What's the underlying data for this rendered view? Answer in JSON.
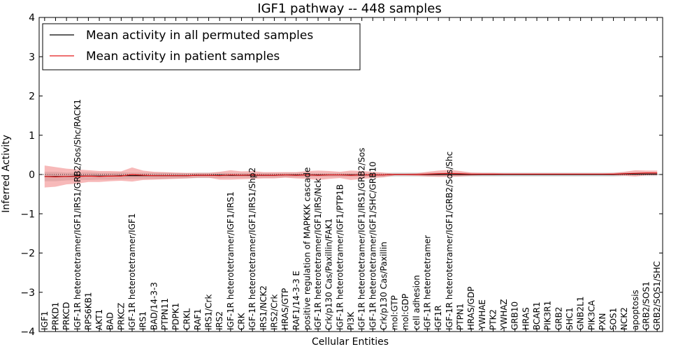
{
  "chart_data": {
    "type": "line",
    "title": "IGF1 pathway -- 448 samples",
    "xlabel": "Cellular Entities",
    "ylabel": "Inferred Activity",
    "ylim": [
      -4,
      4
    ],
    "yticks": [
      -4,
      -3,
      -2,
      -1,
      0,
      1,
      2,
      3,
      4
    ],
    "ytick_labels": [
      "−4",
      "−3",
      "−2",
      "−1",
      "0",
      "1",
      "2",
      "3",
      "4"
    ],
    "legend": {
      "placement": "top-left",
      "entries": [
        "Mean activity in all permuted samples",
        "Mean activity in patient samples"
      ]
    },
    "colors": {
      "permuted_line": "#000000",
      "patient_line": "#e41a1c",
      "permuted_band": "#c8c8c8",
      "patient_band": "#f08080"
    },
    "categories": [
      "IGF1",
      "PRKD1",
      "PRKCD",
      "IGF-1R heterotetramer/IGF1/IRS1/GRB2/Sos/Shc/RACK1",
      "RPS6KB1",
      "AKT1",
      "BAD",
      "PRKCZ",
      "IGF-1R heterotetramer/IGF1",
      "IRS1",
      "BAD/14-3-3",
      "PTPN11",
      "PDPK1",
      "CRKL",
      "RAF1",
      "IRS1/Crk",
      "IRS2",
      "IGF-1R heterotetramer/IGF1/IRS1",
      "CRK",
      "IGF-1R heterotetramer/IGF1/IRS1/Shp2",
      "IRS1/NCK2",
      "IRS2/Crk",
      "HRAS/GTP",
      "RAF1/14-3-3 E",
      "positive regulation of MAPKKK cascade",
      "IGF-1R heterotetramer/IGF1/IRS/Nck",
      "Crk/p130 Cas/Paxillin/FAK1",
      "IGF-1R heterotetramer/IGF1/PTP1B",
      "PI3K",
      "IGF-1R heterotetramer/IGF1/IRS1/GRB2/Sos",
      "IGF-1R heterotetramer/IGF1/SHC/GRB10",
      "Crk/p130 Cas/Paxillin",
      "mol:GTP",
      "mol:GDP",
      "cell adhesion",
      "IGF-1R heterotetramer",
      "IGF1R",
      "IGF-1R heterotetramer/IGF1/GRB2/Sos/Shc",
      "PTPN1",
      "HRAS/GDP",
      "YWHAE",
      "PTK2",
      "YWHAZ",
      "GRB10",
      "HRAS",
      "BCAR1",
      "PIK3R1",
      "GRB2",
      "SHC1",
      "GNB2L1",
      "PIK3CA",
      "PXN",
      "SOS1",
      "NCK2",
      "apoptosis",
      "GRB2/SOS1",
      "GRB2/SOS1/SHC"
    ],
    "series": [
      {
        "name": "Mean activity in all permuted samples",
        "values": [
          -0.05,
          -0.05,
          -0.05,
          -0.04,
          -0.04,
          -0.04,
          -0.04,
          -0.03,
          -0.03,
          -0.03,
          -0.03,
          -0.03,
          -0.03,
          -0.03,
          -0.02,
          -0.02,
          -0.02,
          -0.02,
          -0.02,
          -0.02,
          -0.02,
          -0.02,
          -0.01,
          -0.01,
          -0.01,
          -0.01,
          -0.01,
          -0.01,
          -0.01,
          -0.01,
          -0.01,
          -0.01,
          0.0,
          0.0,
          0.0,
          0.0,
          0.0,
          0.0,
          0.0,
          0.0,
          0.0,
          0.0,
          0.0,
          0.0,
          0.0,
          0.0,
          0.0,
          0.0,
          0.0,
          0.0,
          0.0,
          0.0,
          0.0,
          0.01,
          0.01,
          0.01,
          0.01
        ],
        "band": [
          0.12,
          0.12,
          0.1,
          0.1,
          0.1,
          0.09,
          0.09,
          0.09,
          0.08,
          0.08,
          0.08,
          0.08,
          0.07,
          0.07,
          0.07,
          0.07,
          0.07,
          0.06,
          0.06,
          0.06,
          0.06,
          0.06,
          0.06,
          0.06,
          0.06,
          0.05,
          0.05,
          0.05,
          0.05,
          0.05,
          0.05,
          0.05,
          0.05,
          0.05,
          0.05,
          0.05,
          0.05,
          0.05,
          0.05,
          0.05,
          0.05,
          0.05,
          0.05,
          0.05,
          0.05,
          0.05,
          0.05,
          0.05,
          0.05,
          0.05,
          0.05,
          0.05,
          0.05,
          0.05,
          0.05,
          0.05,
          0.05
        ]
      },
      {
        "name": "Mean activity in patient samples",
        "values": [
          -0.05,
          -0.06,
          -0.05,
          -0.05,
          -0.04,
          -0.05,
          -0.04,
          -0.04,
          0.0,
          -0.02,
          -0.03,
          -0.03,
          -0.03,
          -0.03,
          -0.02,
          -0.02,
          -0.03,
          -0.01,
          -0.02,
          -0.01,
          -0.02,
          -0.02,
          -0.01,
          -0.02,
          -0.01,
          -0.02,
          -0.01,
          -0.01,
          -0.02,
          -0.01,
          -0.01,
          -0.01,
          0.0,
          0.0,
          0.0,
          0.01,
          0.02,
          0.03,
          0.02,
          0.01,
          0.01,
          0.01,
          0.01,
          0.01,
          0.01,
          0.01,
          0.01,
          0.01,
          0.01,
          0.01,
          0.01,
          0.01,
          0.01,
          0.02,
          0.03,
          0.04,
          0.04
        ],
        "band": [
          0.28,
          0.25,
          0.2,
          0.18,
          0.15,
          0.14,
          0.13,
          0.12,
          0.18,
          0.12,
          0.1,
          0.09,
          0.08,
          0.07,
          0.06,
          0.06,
          0.1,
          0.12,
          0.1,
          0.1,
          0.08,
          0.08,
          0.07,
          0.08,
          0.1,
          0.12,
          0.1,
          0.08,
          0.12,
          0.1,
          0.08,
          0.06,
          0.02,
          0.02,
          0.03,
          0.06,
          0.08,
          0.09,
          0.07,
          0.04,
          0.03,
          0.03,
          0.02,
          0.02,
          0.02,
          0.02,
          0.02,
          0.02,
          0.02,
          0.02,
          0.02,
          0.02,
          0.03,
          0.05,
          0.08,
          0.06,
          0.06
        ]
      }
    ]
  }
}
